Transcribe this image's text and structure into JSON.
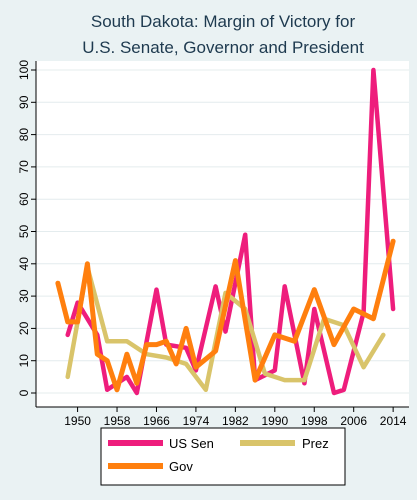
{
  "chart_data": {
    "type": "line",
    "title": "South Dakota: Margin of Victory for",
    "subtitle": "U.S. Senate, Governor and President",
    "xlabel": "",
    "ylabel": "",
    "xlim": [
      1944,
      2016
    ],
    "ylim": [
      0,
      100
    ],
    "x_ticks": [
      1950,
      1958,
      1966,
      1974,
      1982,
      1990,
      1998,
      2006,
      2014
    ],
    "y_ticks": [
      0,
      10,
      20,
      30,
      40,
      50,
      60,
      70,
      80,
      90,
      100
    ],
    "grid": true,
    "legend_position": "bottom",
    "series": [
      {
        "name": "US Sen",
        "color": "#ee1d7c",
        "points": [
          [
            1948,
            18
          ],
          [
            1950,
            28
          ],
          [
            1954,
            18
          ],
          [
            1956,
            1
          ],
          [
            1960,
            5
          ],
          [
            1962,
            0
          ],
          [
            1966,
            32
          ],
          [
            1968,
            15
          ],
          [
            1972,
            14
          ],
          [
            1974,
            7
          ],
          [
            1978,
            33
          ],
          [
            1980,
            19
          ],
          [
            1984,
            49
          ],
          [
            1986,
            4
          ],
          [
            1990,
            7
          ],
          [
            1992,
            33
          ],
          [
            1996,
            3
          ],
          [
            1998,
            26
          ],
          [
            2002,
            0
          ],
          [
            2004,
            1
          ],
          [
            2008,
            25
          ],
          [
            2010,
            100
          ],
          [
            2014,
            26
          ]
        ]
      },
      {
        "name": "Prez",
        "color": "#d9c46a",
        "points": [
          [
            1948,
            5
          ],
          [
            1952,
            39
          ],
          [
            1956,
            16
          ],
          [
            1960,
            16
          ],
          [
            1964,
            12
          ],
          [
            1968,
            11
          ],
          [
            1972,
            9
          ],
          [
            1976,
            1
          ],
          [
            1980,
            31
          ],
          [
            1984,
            26
          ],
          [
            1988,
            6
          ],
          [
            1992,
            4
          ],
          [
            1996,
            4
          ],
          [
            2000,
            23
          ],
          [
            2004,
            21
          ],
          [
            2008,
            8
          ],
          [
            2012,
            18
          ]
        ]
      },
      {
        "name": "Gov",
        "color": "#ff7f0e",
        "points": [
          [
            1946,
            34
          ],
          [
            1948,
            22
          ],
          [
            1950,
            22
          ],
          [
            1952,
            40
          ],
          [
            1954,
            12
          ],
          [
            1956,
            10
          ],
          [
            1958,
            1
          ],
          [
            1960,
            12
          ],
          [
            1962,
            3
          ],
          [
            1964,
            15
          ],
          [
            1966,
            15
          ],
          [
            1968,
            16
          ],
          [
            1970,
            9
          ],
          [
            1972,
            20
          ],
          [
            1974,
            8
          ],
          [
            1978,
            13
          ],
          [
            1982,
            41
          ],
          [
            1986,
            4
          ],
          [
            1990,
            18
          ],
          [
            1994,
            16
          ],
          [
            1998,
            32
          ],
          [
            2002,
            15
          ],
          [
            2006,
            26
          ],
          [
            2010,
            23
          ],
          [
            2014,
            47
          ]
        ]
      }
    ]
  }
}
